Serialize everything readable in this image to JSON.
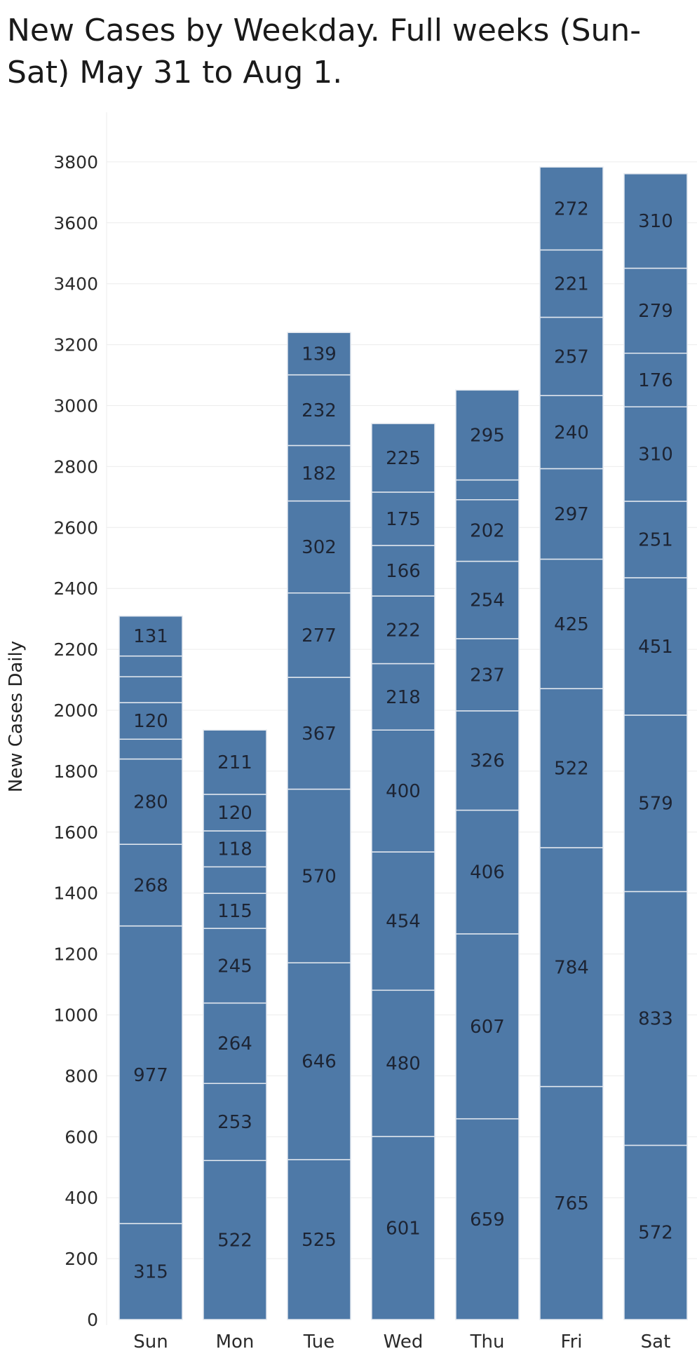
{
  "title": "New Cases by Weekday.  Full weeks (Sun-Sat) May 31 to Aug 1.",
  "colors": {
    "bar": "#4e79a7",
    "separator": "#e3e8ef",
    "grid": "#ececec",
    "text": "#1d2433"
  },
  "chart_data": {
    "type": "bar",
    "stacked": true,
    "title": "New Cases by Weekday.  Full weeks (Sun-Sat) May 31 to Aug 1.",
    "xlabel": "",
    "ylabel": "New Cases Daily",
    "ylim": [
      0,
      3800
    ],
    "yticks": [
      0,
      200,
      400,
      600,
      800,
      1000,
      1200,
      1400,
      1600,
      1800,
      2000,
      2200,
      2400,
      2600,
      2800,
      3000,
      3200,
      3400,
      3600,
      3800
    ],
    "grid": true,
    "categories": [
      "Sun",
      "Mon",
      "Tue",
      "Wed",
      "Thu",
      "Fri",
      "Sat"
    ],
    "stacks": [
      {
        "category": "Sun",
        "segments": [
          {
            "value": 315,
            "label": "315"
          },
          {
            "value": 977,
            "label": "977"
          },
          {
            "value": 268,
            "label": "268"
          },
          {
            "value": 280,
            "label": "280"
          },
          {
            "value": 65,
            "label": ""
          },
          {
            "value": 120,
            "label": "120"
          },
          {
            "value": 85,
            "label": ""
          },
          {
            "value": 68,
            "label": ""
          },
          {
            "value": 131,
            "label": "131"
          }
        ]
      },
      {
        "category": "Mon",
        "segments": [
          {
            "value": 522,
            "label": "522"
          },
          {
            "value": 253,
            "label": "253"
          },
          {
            "value": 264,
            "label": "264"
          },
          {
            "value": 245,
            "label": "245"
          },
          {
            "value": 115,
            "label": "115"
          },
          {
            "value": 87,
            "label": ""
          },
          {
            "value": 118,
            "label": "118"
          },
          {
            "value": 120,
            "label": "120"
          },
          {
            "value": 211,
            "label": "211"
          }
        ]
      },
      {
        "category": "Tue",
        "segments": [
          {
            "value": 525,
            "label": "525"
          },
          {
            "value": 646,
            "label": "646"
          },
          {
            "value": 570,
            "label": "570"
          },
          {
            "value": 367,
            "label": "367"
          },
          {
            "value": 277,
            "label": "277"
          },
          {
            "value": 302,
            "label": "302"
          },
          {
            "value": 182,
            "label": "182"
          },
          {
            "value": 232,
            "label": "232"
          },
          {
            "value": 139,
            "label": "139"
          }
        ]
      },
      {
        "category": "Wed",
        "segments": [
          {
            "value": 601,
            "label": "601"
          },
          {
            "value": 480,
            "label": "480"
          },
          {
            "value": 454,
            "label": "454"
          },
          {
            "value": 400,
            "label": "400"
          },
          {
            "value": 218,
            "label": "218"
          },
          {
            "value": 222,
            "label": "222"
          },
          {
            "value": 166,
            "label": "166"
          },
          {
            "value": 175,
            "label": "175"
          },
          {
            "value": 225,
            "label": "225"
          }
        ]
      },
      {
        "category": "Thu",
        "segments": [
          {
            "value": 659,
            "label": "659"
          },
          {
            "value": 607,
            "label": "607"
          },
          {
            "value": 406,
            "label": "406"
          },
          {
            "value": 326,
            "label": "326"
          },
          {
            "value": 237,
            "label": "237"
          },
          {
            "value": 254,
            "label": "254"
          },
          {
            "value": 202,
            "label": "202"
          },
          {
            "value": 65,
            "label": ""
          },
          {
            "value": 295,
            "label": "295"
          }
        ]
      },
      {
        "category": "Fri",
        "segments": [
          {
            "value": 765,
            "label": "765"
          },
          {
            "value": 784,
            "label": "784"
          },
          {
            "value": 522,
            "label": "522"
          },
          {
            "value": 425,
            "label": "425"
          },
          {
            "value": 297,
            "label": "297"
          },
          {
            "value": 240,
            "label": "240"
          },
          {
            "value": 257,
            "label": "257"
          },
          {
            "value": 221,
            "label": "221"
          },
          {
            "value": 272,
            "label": "272"
          }
        ]
      },
      {
        "category": "Sat",
        "segments": [
          {
            "value": 572,
            "label": "572"
          },
          {
            "value": 833,
            "label": "833"
          },
          {
            "value": 579,
            "label": "579"
          },
          {
            "value": 451,
            "label": "451"
          },
          {
            "value": 251,
            "label": "251"
          },
          {
            "value": 310,
            "label": "310"
          },
          {
            "value": 176,
            "label": "176"
          },
          {
            "value": 279,
            "label": "279"
          },
          {
            "value": 310,
            "label": "310"
          }
        ]
      }
    ]
  }
}
